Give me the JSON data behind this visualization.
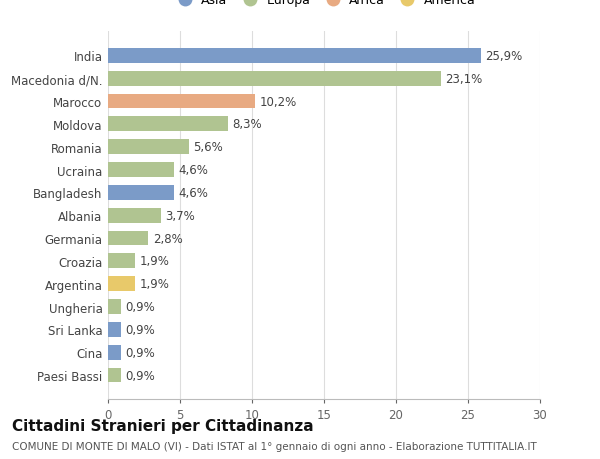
{
  "categories": [
    "Paesi Bassi",
    "Cina",
    "Sri Lanka",
    "Ungheria",
    "Argentina",
    "Croazia",
    "Germania",
    "Albania",
    "Bangladesh",
    "Ucraina",
    "Romania",
    "Moldova",
    "Marocco",
    "Macedonia d/N.",
    "India"
  ],
  "values": [
    0.9,
    0.9,
    0.9,
    0.9,
    1.9,
    1.9,
    2.8,
    3.7,
    4.6,
    4.6,
    5.6,
    8.3,
    10.2,
    23.1,
    25.9
  ],
  "continents": [
    "Europa",
    "Asia",
    "Asia",
    "Europa",
    "America",
    "Europa",
    "Europa",
    "Europa",
    "Asia",
    "Europa",
    "Europa",
    "Europa",
    "Africa",
    "Europa",
    "Asia"
  ],
  "labels": [
    "0,9%",
    "0,9%",
    "0,9%",
    "0,9%",
    "1,9%",
    "1,9%",
    "2,8%",
    "3,7%",
    "4,6%",
    "4,6%",
    "5,6%",
    "8,3%",
    "10,2%",
    "23,1%",
    "25,9%"
  ],
  "continent_colors": {
    "Asia": "#7b9bc8",
    "Europa": "#b0c491",
    "Africa": "#e8aa82",
    "America": "#e8c96a"
  },
  "legend_order": [
    "Asia",
    "Europa",
    "Africa",
    "America"
  ],
  "xlim": [
    0,
    30
  ],
  "xticks": [
    0,
    5,
    10,
    15,
    20,
    25,
    30
  ],
  "title": "Cittadini Stranieri per Cittadinanza",
  "subtitle": "COMUNE DI MONTE DI MALO (VI) - Dati ISTAT al 1° gennaio di ogni anno - Elaborazione TUTTITALIA.IT",
  "bg_color": "#ffffff",
  "grid_color": "#dddddd",
  "bar_height": 0.65,
  "label_fontsize": 8.5,
  "title_fontsize": 11,
  "subtitle_fontsize": 7.5,
  "tick_fontsize": 8.5,
  "legend_fontsize": 9
}
